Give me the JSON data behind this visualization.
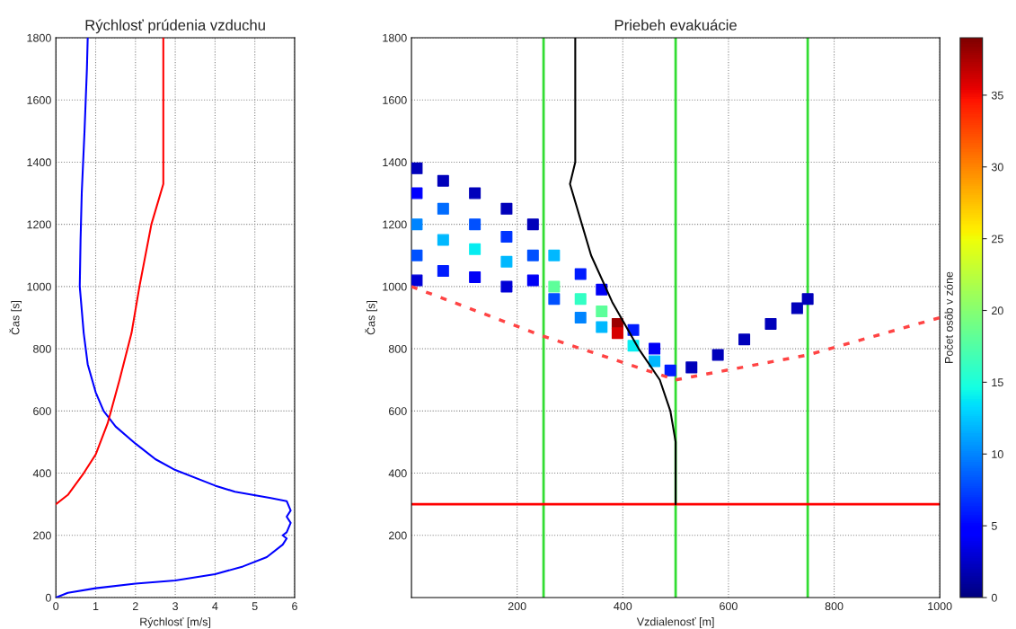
{
  "chart_data": [
    {
      "type": "line",
      "title": "Rýchlosť prúdenia vzduchu",
      "xlabel": "Rýchlosť [m/s]",
      "ylabel": "Čas [s]",
      "xlim": [
        0,
        6
      ],
      "xticks": [
        0,
        1,
        2,
        3,
        4,
        5,
        6
      ],
      "ylim": [
        0,
        1800
      ],
      "yticks": [
        0,
        200,
        400,
        600,
        800,
        1000,
        1200,
        1400,
        1600,
        1800
      ],
      "grid": true,
      "series": [
        {
          "color": "#0000ff",
          "x": [
            0,
            0.3,
            1,
            2,
            3,
            4,
            4.7,
            5.3,
            5.7,
            5.8,
            5.7,
            5.8,
            5.9,
            5.8,
            5.9,
            5.8,
            5.4,
            4.5,
            4,
            3,
            2.5,
            2,
            1.5,
            1.2,
            1,
            0.8,
            0.7,
            0.6,
            0.62,
            0.65,
            0.72,
            0.78,
            0.8
          ],
          "values": [
            0,
            15,
            30,
            45,
            55,
            75,
            100,
            130,
            170,
            190,
            200,
            210,
            240,
            260,
            280,
            310,
            320,
            340,
            360,
            410,
            445,
            495,
            550,
            600,
            660,
            750,
            850,
            1000,
            1150,
            1300,
            1500,
            1700,
            1800
          ]
        },
        {
          "color": "#ff0000",
          "x": [
            0,
            0.3,
            0.7,
            1,
            1.3,
            1.6,
            1.9,
            2.1,
            2.4,
            2.7,
            2.7
          ],
          "values": [
            300,
            330,
            400,
            460,
            560,
            700,
            850,
            1000,
            1200,
            1330,
            1800
          ]
        }
      ]
    },
    {
      "type": "scatter",
      "title": "Priebeh evakuácie",
      "xlabel": "Vzdialenosť [m]",
      "ylabel": "Čas [s]",
      "clabel": "Počet osôb v zóne",
      "xlim": [
        0,
        1000
      ],
      "xticks": [
        200,
        400,
        600,
        800,
        1000
      ],
      "ylim": [
        0,
        1800
      ],
      "yticks": [
        200,
        400,
        600,
        800,
        1000,
        1200,
        1400,
        1600,
        1800
      ],
      "clim": [
        0,
        39
      ],
      "cticks": [
        0,
        5,
        10,
        15,
        20,
        25,
        30,
        35
      ],
      "grid": true,
      "ref_lines": [
        {
          "axis": "x",
          "value": 250,
          "color": "#33dd33"
        },
        {
          "axis": "x",
          "value": 500,
          "color": "#33dd33"
        },
        {
          "axis": "x",
          "value": 750,
          "color": "#33dd33"
        },
        {
          "axis": "y",
          "value": 300,
          "color": "#ff0000"
        }
      ],
      "series": [
        {
          "type": "scatter",
          "marker": "square",
          "x": [
            10,
            10,
            10,
            10,
            10,
            60,
            60,
            60,
            60,
            120,
            120,
            120,
            120,
            180,
            180,
            180,
            180,
            230,
            230,
            230,
            270,
            270,
            270,
            320,
            320,
            320,
            360,
            360,
            360,
            390,
            390,
            420,
            420,
            460,
            460,
            490,
            530,
            580,
            630,
            680,
            730,
            750
          ],
          "values": [
            1380,
            1300,
            1200,
            1100,
            1020,
            1340,
            1250,
            1150,
            1050,
            1300,
            1200,
            1120,
            1030,
            1250,
            1160,
            1080,
            1000,
            1200,
            1100,
            1020,
            1100,
            1000,
            960,
            1040,
            960,
            900,
            990,
            920,
            870,
            880,
            850,
            860,
            810,
            800,
            760,
            730,
            740,
            780,
            830,
            880,
            930,
            960
          ],
          "cvalues": [
            2,
            5,
            10,
            8,
            3,
            2,
            9,
            12,
            6,
            2,
            8,
            14,
            4,
            2,
            7,
            12,
            3,
            2,
            8,
            4,
            12,
            18,
            8,
            6,
            16,
            10,
            4,
            18,
            12,
            38,
            36,
            6,
            14,
            4,
            12,
            6,
            2,
            2,
            2,
            2,
            2,
            2
          ],
          "colors": [
            "#0000ba",
            "#0003ff",
            "#0086ff",
            "#0052ff",
            "#0000d9",
            "#0000ba",
            "#006bff",
            "#00baff",
            "#001eff",
            "#0000ba",
            "#0052ff",
            "#08eff0",
            "#0000f7",
            "#0000ba",
            "#0037ff",
            "#00baff",
            "#0000d9",
            "#0000ba",
            "#0052ff",
            "#0000f7",
            "#00baff",
            "#5cff99",
            "#0052ff",
            "#001eff",
            "#31ffc4",
            "#0086ff",
            "#0000f7",
            "#5cff99",
            "#00baff",
            "#9e0000",
            "#d90000",
            "#001eff",
            "#08eff0",
            "#0000f7",
            "#00baff",
            "#001eff",
            "#0000ba",
            "#0000ba",
            "#0000ba",
            "#0000ba",
            "#0000ba",
            "#0000ba"
          ]
        },
        {
          "type": "line",
          "color": "#000000",
          "x": [
            500,
            500,
            490,
            470,
            430,
            380,
            340,
            300,
            310,
            310
          ],
          "values": [
            300,
            500,
            600,
            700,
            800,
            950,
            1100,
            1330,
            1400,
            1800
          ]
        },
        {
          "type": "line",
          "color": "#ff4444",
          "line_style": "dashed",
          "x": [
            0,
            250,
            500
          ],
          "values": [
            1000,
            840,
            700
          ]
        },
        {
          "type": "line",
          "color": "#ff4444",
          "line_style": "dashed",
          "x": [
            500,
            750,
            1000
          ],
          "values": [
            700,
            780,
            900
          ]
        }
      ]
    }
  ]
}
